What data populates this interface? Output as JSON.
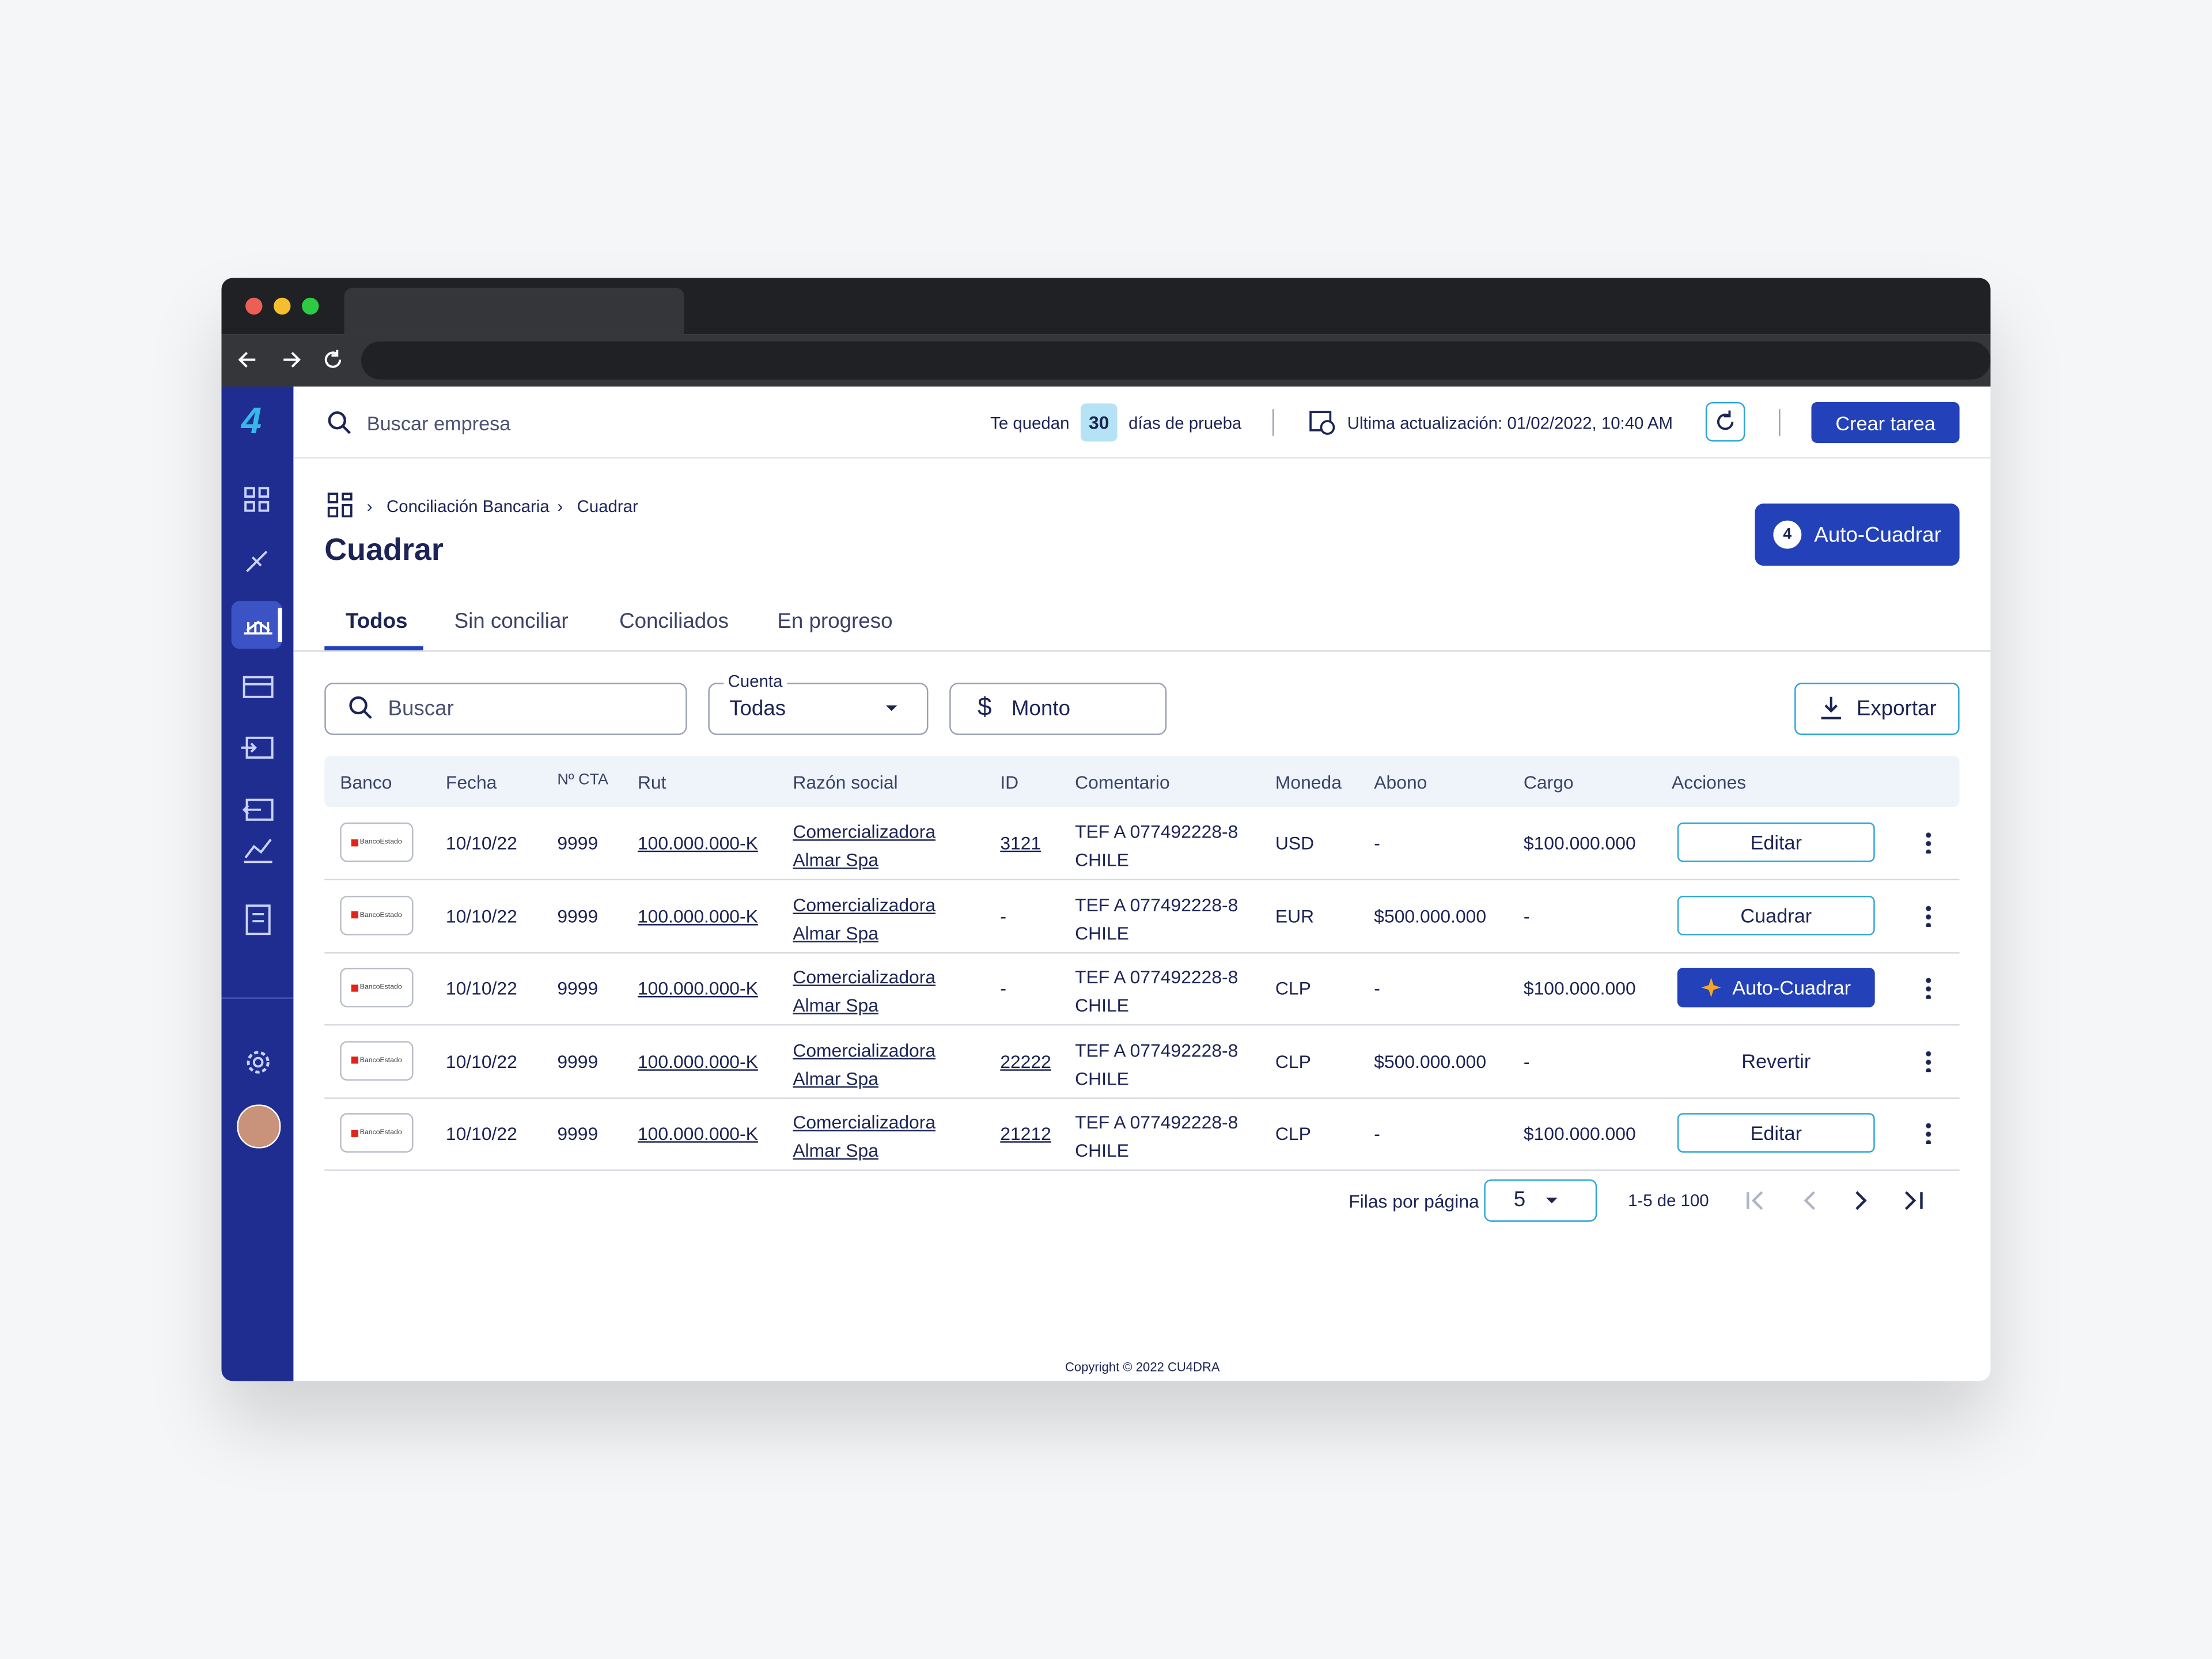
{
  "header": {
    "search_placeholder": "Buscar empresa",
    "trial_prefix": "Te quedan",
    "trial_days": "30",
    "trial_suffix": "días de prueba",
    "last_update": "Ultima actualización: 01/02/2022, 10:40 AM",
    "create_task": "Crear tarea"
  },
  "breadcrumb": [
    "Conciliación Bancaria",
    "Cuadrar"
  ],
  "title": "Cuadrar",
  "auto_button": {
    "count": "4",
    "label": "Auto-Cuadrar"
  },
  "tabs": [
    "Todos",
    "Sin conciliar",
    "Conciliados",
    "En progreso"
  ],
  "filters": {
    "search": "Buscar",
    "account_label": "Cuenta",
    "account_value": "Todas",
    "amount": "Monto",
    "export": "Exportar"
  },
  "table": {
    "columns": [
      "Banco",
      "Fecha",
      "Nº CTA",
      "Rut",
      "Razón social",
      "ID",
      "Comentario",
      "Moneda",
      "Abono",
      "Cargo",
      "Acciones"
    ],
    "rows": [
      [
        "BancoEstado",
        "10/10/22",
        "9999",
        "100.000.000-K",
        "Comercializadora Almar Spa",
        "3121",
        "TEF A 077492228-8 CHILE",
        "USD",
        "-",
        "$100.000.000",
        "Editar"
      ],
      [
        "BancoEstado",
        "10/10/22",
        "9999",
        "100.000.000-K",
        "Comercializadora Almar Spa",
        "-",
        "TEF A 077492228-8 CHILE",
        "EUR",
        "$500.000.000",
        "-",
        "Cuadrar"
      ],
      [
        "BancoEstado",
        "10/10/22",
        "9999",
        "100.000.000-K",
        "Comercializadora Almar Spa",
        "-",
        "TEF A 077492228-8 CHILE",
        "CLP",
        "-",
        "$100.000.000",
        "Auto-Cuadrar"
      ],
      [
        "BancoEstado",
        "10/10/22",
        "9999",
        "100.000.000-K",
        "Comercializadora Almar Spa",
        "22222",
        "TEF A 077492228-8 CHILE",
        "CLP",
        "$500.000.000",
        "-",
        "Revertir"
      ],
      [
        "BancoEstado",
        "10/10/22",
        "9999",
        "100.000.000-K",
        "Comercializadora Almar Spa",
        "21212",
        "TEF A 077492228-8 CHILE",
        "CLP",
        "-",
        "$100.000.000",
        "Editar"
      ]
    ]
  },
  "pagination": {
    "rows_label": "Filas por página",
    "rows_value": "5",
    "range": "1-5 de 100"
  },
  "footer": "Copyright © 2022 CU4DRA"
}
